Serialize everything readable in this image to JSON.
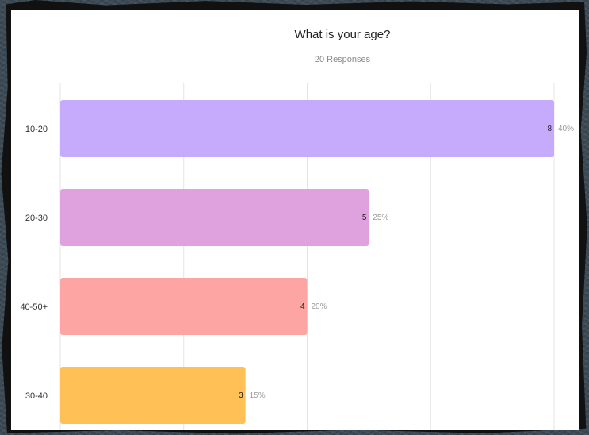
{
  "chart_data": {
    "type": "bar",
    "orientation": "horizontal",
    "title": "What is your age?",
    "subtitle": "20 Responses",
    "categories": [
      "10-20",
      "20-30",
      "40-50+",
      "30-40"
    ],
    "values": [
      8,
      5,
      4,
      3
    ],
    "percent_labels": [
      "40%",
      "25%",
      "20%",
      "15%"
    ],
    "colors": [
      "#c6abfc",
      "#e0a2df",
      "#fca5a3",
      "#ffc155"
    ],
    "xlim": [
      0,
      8
    ],
    "grid": true
  }
}
